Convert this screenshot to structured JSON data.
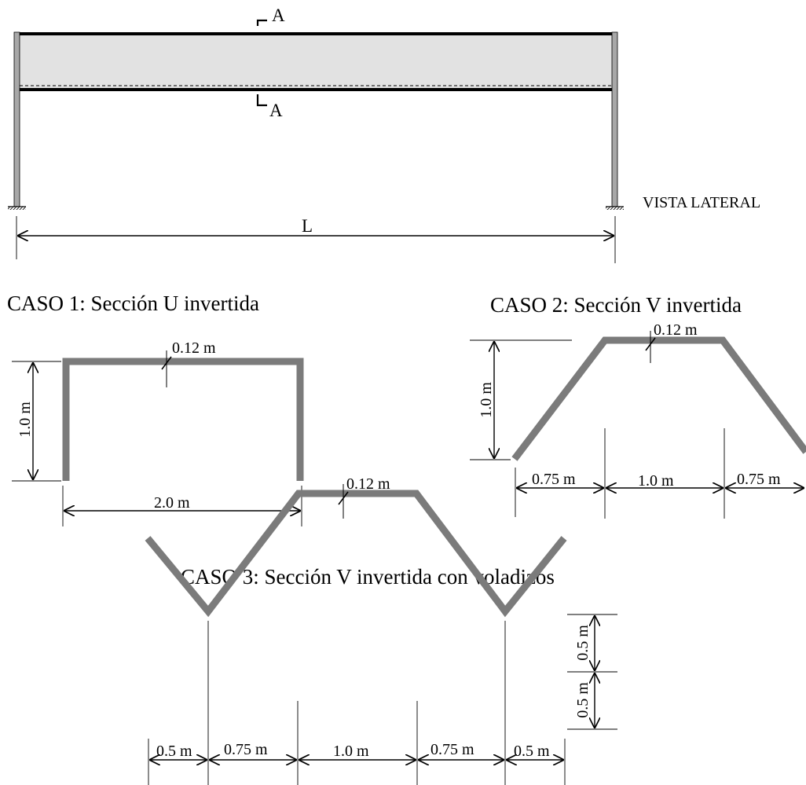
{
  "side_view": {
    "section_label_top": "A",
    "section_label_bottom": "A",
    "length_label": "L",
    "view_label": "VISTA LATERAL"
  },
  "case1": {
    "title": "CASO 1: Sección U invertida",
    "thickness": "0.12 m",
    "height": "1.0 m",
    "width": "2.0 m"
  },
  "case2": {
    "title": "CASO 2: Sección V invertida",
    "thickness": "0.12 m",
    "height": "1.0 m",
    "span_left": "0.75 m",
    "span_mid": "1.0 m",
    "span_right": "0.75 m"
  },
  "case3": {
    "title": "CASO 3: Sección V invertida con voladizos",
    "thickness": "0.12 m",
    "height_top": "0.5 m",
    "height_bottom": "0.5 m",
    "span_1": "0.5 m",
    "span_2": "0.75 m",
    "span_3": "1.0 m",
    "span_4": "0.75 m",
    "span_5": "0.5 m"
  },
  "colors": {
    "section": "#7b7b7b",
    "deck_fill": "#e2e2e2",
    "column": "#a8a8a8"
  }
}
